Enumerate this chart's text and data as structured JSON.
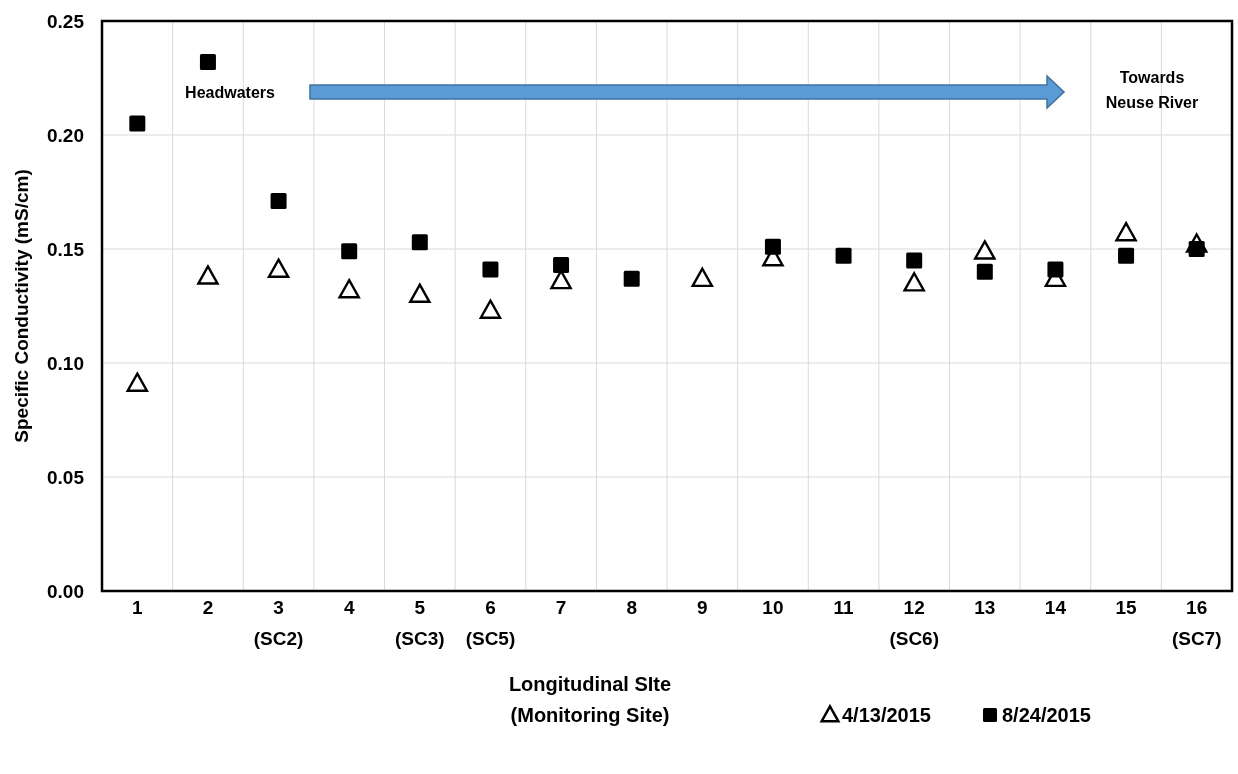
{
  "chart_data": {
    "type": "scatter",
    "xlabel": "Longitudinal SIte\n(Monitoring Site)",
    "ylabel": "Specific Conductivity (mS/cm)",
    "categories": [
      "1",
      "2",
      "3\n(SC2)",
      "4",
      "5\n(SC3)",
      "6\n(SC5)",
      "7",
      "8",
      "9",
      "10",
      "11",
      "12\n(SC6)",
      "13",
      "14",
      "15",
      "16\n(SC7)"
    ],
    "series": [
      {
        "name": "4/13/2015",
        "color": "#000000",
        "marker": "triangle",
        "values": [
          0.091,
          0.138,
          0.141,
          0.132,
          0.13,
          0.123,
          0.136,
          null,
          0.137,
          0.146,
          null,
          0.135,
          0.149,
          0.137,
          0.157,
          0.152
        ]
      },
      {
        "name": "8/24/2015",
        "color": "#000000",
        "marker": "square",
        "values": [
          0.205,
          0.232,
          0.171,
          0.149,
          0.153,
          0.141,
          0.143,
          0.137,
          null,
          0.151,
          0.147,
          0.145,
          0.14,
          0.141,
          0.147,
          0.15
        ]
      }
    ],
    "ylim": [
      0,
      0.25
    ],
    "yticks": [
      {
        "value": 0,
        "label": "0.00"
      },
      {
        "value": 0.05,
        "label": "0.05"
      },
      {
        "value": 0.1,
        "label": "0.10"
      },
      {
        "value": 0.15,
        "label": "0.15"
      },
      {
        "value": 0.2,
        "label": "0.20"
      },
      {
        "value": 0.25,
        "label": "0.25"
      }
    ],
    "grid": true,
    "legend": "bottom right",
    "annotations": [
      "Headwaters",
      "Towards\nNeuse River"
    ]
  }
}
